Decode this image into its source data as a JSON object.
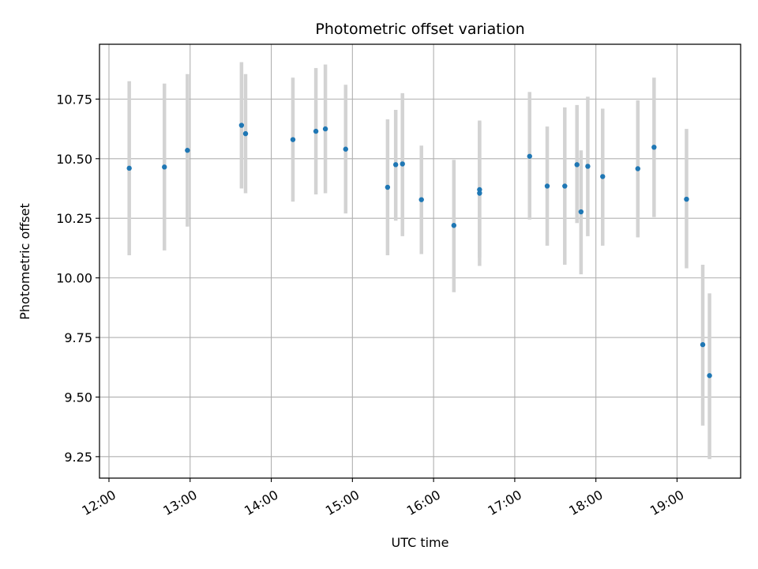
{
  "chart_data": {
    "type": "scatter",
    "title": "Photometric offset variation",
    "xlabel": "UTC time",
    "ylabel": "Photometric offset",
    "x_axis_type": "time",
    "xlim": [
      "11:53",
      "19:47"
    ],
    "ylim": [
      9.16,
      10.98
    ],
    "xticks": [
      "12:00",
      "13:00",
      "14:00",
      "15:00",
      "16:00",
      "17:00",
      "18:00",
      "19:00"
    ],
    "yticks": [
      9.25,
      9.5,
      9.75,
      10.0,
      10.25,
      10.5,
      10.75
    ],
    "ytick_labels": [
      "9.25",
      "9.50",
      "9.75",
      "10.00",
      "10.25",
      "10.50",
      "10.75"
    ],
    "grid": true,
    "legend": false,
    "colors": {
      "marker": "#1f77b4",
      "errorbar": "#d3d3d3",
      "grid": "#b0b0b0"
    },
    "series": [
      {
        "points": [
          {
            "x": "12:15",
            "y": 10.46,
            "ylow": 10.095,
            "yhigh": 10.825
          },
          {
            "x": "12:41",
            "y": 10.465,
            "ylow": 10.115,
            "yhigh": 10.815
          },
          {
            "x": "12:58",
            "y": 10.535,
            "ylow": 10.215,
            "yhigh": 10.855
          },
          {
            "x": "13:38",
            "y": 10.64,
            "ylow": 10.375,
            "yhigh": 10.905
          },
          {
            "x": "13:41",
            "y": 10.605,
            "ylow": 10.355,
            "yhigh": 10.855
          },
          {
            "x": "14:16",
            "y": 10.58,
            "ylow": 10.32,
            "yhigh": 10.84
          },
          {
            "x": "14:33",
            "y": 10.615,
            "ylow": 10.35,
            "yhigh": 10.88
          },
          {
            "x": "14:40",
            "y": 10.625,
            "ylow": 10.355,
            "yhigh": 10.895
          },
          {
            "x": "14:55",
            "y": 10.54,
            "ylow": 10.27,
            "yhigh": 10.81
          },
          {
            "x": "15:26",
            "y": 10.38,
            "ylow": 10.095,
            "yhigh": 10.665
          },
          {
            "x": "15:32",
            "y": 10.475,
            "ylow": 10.24,
            "yhigh": 10.705
          },
          {
            "x": "15:37",
            "y": 10.478,
            "ylow": 10.175,
            "yhigh": 10.775
          },
          {
            "x": "15:51",
            "y": 10.328,
            "ylow": 10.1,
            "yhigh": 10.555
          },
          {
            "x": "16:15",
            "y": 10.22,
            "ylow": 9.94,
            "yhigh": 10.495
          },
          {
            "x": "16:34",
            "y": 10.37,
            "ylow": 10.085,
            "yhigh": 10.655
          },
          {
            "x": "16:34",
            "y": 10.355,
            "ylow": 10.05,
            "yhigh": 10.66
          },
          {
            "x": "17:11",
            "y": 10.51,
            "ylow": 10.245,
            "yhigh": 10.78
          },
          {
            "x": "17:24",
            "y": 10.385,
            "ylow": 10.135,
            "yhigh": 10.635
          },
          {
            "x": "17:37",
            "y": 10.385,
            "ylow": 10.055,
            "yhigh": 10.715
          },
          {
            "x": "17:46",
            "y": 10.475,
            "ylow": 10.23,
            "yhigh": 10.725
          },
          {
            "x": "17:49",
            "y": 10.277,
            "ylow": 10.015,
            "yhigh": 10.535
          },
          {
            "x": "17:54",
            "y": 10.468,
            "ylow": 10.175,
            "yhigh": 10.76
          },
          {
            "x": "18:05",
            "y": 10.425,
            "ylow": 10.135,
            "yhigh": 10.71
          },
          {
            "x": "18:31",
            "y": 10.458,
            "ylow": 10.17,
            "yhigh": 10.745
          },
          {
            "x": "18:43",
            "y": 10.548,
            "ylow": 10.255,
            "yhigh": 10.84
          },
          {
            "x": "19:07",
            "y": 10.33,
            "ylow": 10.04,
            "yhigh": 10.625
          },
          {
            "x": "19:19",
            "y": 9.72,
            "ylow": 9.38,
            "yhigh": 10.055
          },
          {
            "x": "19:24",
            "y": 9.59,
            "ylow": 9.24,
            "yhigh": 9.935
          }
        ]
      }
    ]
  }
}
